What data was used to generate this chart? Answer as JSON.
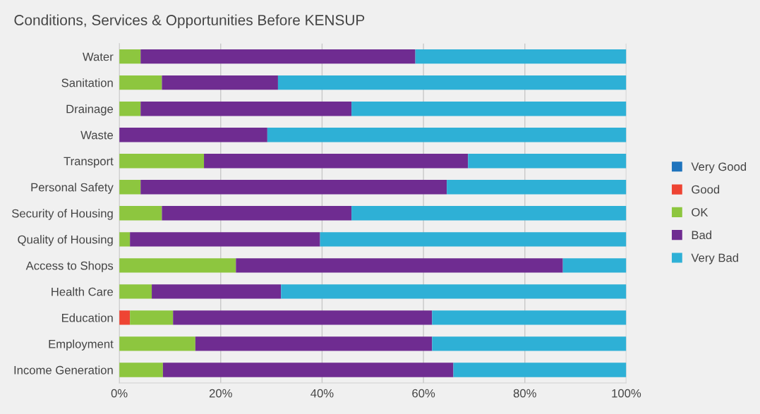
{
  "chart_data": {
    "type": "bar",
    "orientation": "horizontal",
    "stacked": true,
    "title": "Conditions, Services & Opportunities Before KENSUP",
    "categories": [
      "Water",
      "Sanitation",
      "Drainage",
      "Waste",
      "Transport",
      "Personal Safety",
      "Security of Housing",
      "Quality of Housing",
      "Access to Shops",
      "Health Care",
      "Education",
      "Employment",
      "Income Generation"
    ],
    "series": [
      {
        "name": "Very Good",
        "color": "#1f74bd",
        "values": [
          0,
          0,
          0,
          0,
          0,
          0,
          0,
          0,
          0,
          0,
          0,
          0,
          0
        ]
      },
      {
        "name": "Good",
        "color": "#ee4433",
        "values": [
          0,
          0,
          0,
          0,
          0,
          0,
          0,
          0,
          0,
          0,
          2.1,
          0,
          0
        ]
      },
      {
        "name": "OK",
        "color": "#8dc63f",
        "values": [
          4.2,
          8.4,
          4.2,
          0,
          16.7,
          4.2,
          8.4,
          2.1,
          23.0,
          6.4,
          8.5,
          15.0,
          8.6
        ]
      },
      {
        "name": "Bad",
        "color": "#6f2c91",
        "values": [
          54.2,
          22.9,
          41.6,
          29.2,
          52.1,
          60.4,
          37.4,
          37.5,
          64.5,
          25.5,
          51.1,
          46.7,
          57.3
        ]
      },
      {
        "name": "Very Bad",
        "color": "#2eb0d6",
        "values": [
          41.6,
          68.7,
          54.2,
          70.8,
          31.2,
          35.4,
          54.2,
          60.4,
          12.5,
          68.1,
          38.3,
          38.3,
          34.1
        ]
      }
    ],
    "xlim": [
      0,
      100
    ],
    "xticks": [
      {
        "value": 0,
        "label": "0%"
      },
      {
        "value": 20,
        "label": "20%"
      },
      {
        "value": 40,
        "label": "40%"
      },
      {
        "value": 60,
        "label": "60%"
      },
      {
        "value": 80,
        "label": "80%"
      },
      {
        "value": 100,
        "label": "100%"
      }
    ],
    "grid": "x",
    "legend": "right"
  }
}
